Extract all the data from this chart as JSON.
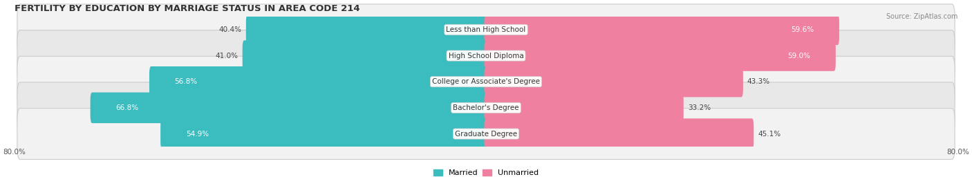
{
  "title": "FERTILITY BY EDUCATION BY MARRIAGE STATUS IN AREA CODE 214",
  "source": "Source: ZipAtlas.com",
  "categories": [
    "Less than High School",
    "High School Diploma",
    "College or Associate's Degree",
    "Bachelor's Degree",
    "Graduate Degree"
  ],
  "married_values": [
    40.4,
    41.0,
    56.8,
    66.8,
    54.9
  ],
  "unmarried_values": [
    59.6,
    59.0,
    43.3,
    33.2,
    45.1
  ],
  "married_color": "#3BBCBF",
  "unmarried_color": "#F080A0",
  "row_bg_even": "#F2F2F2",
  "row_bg_odd": "#E8E8E8",
  "axis_min": -80.0,
  "axis_max": 80.0,
  "title_fontsize": 9.5,
  "value_fontsize": 7.5,
  "label_fontsize": 7.5,
  "legend_fontsize": 8,
  "source_fontsize": 7
}
